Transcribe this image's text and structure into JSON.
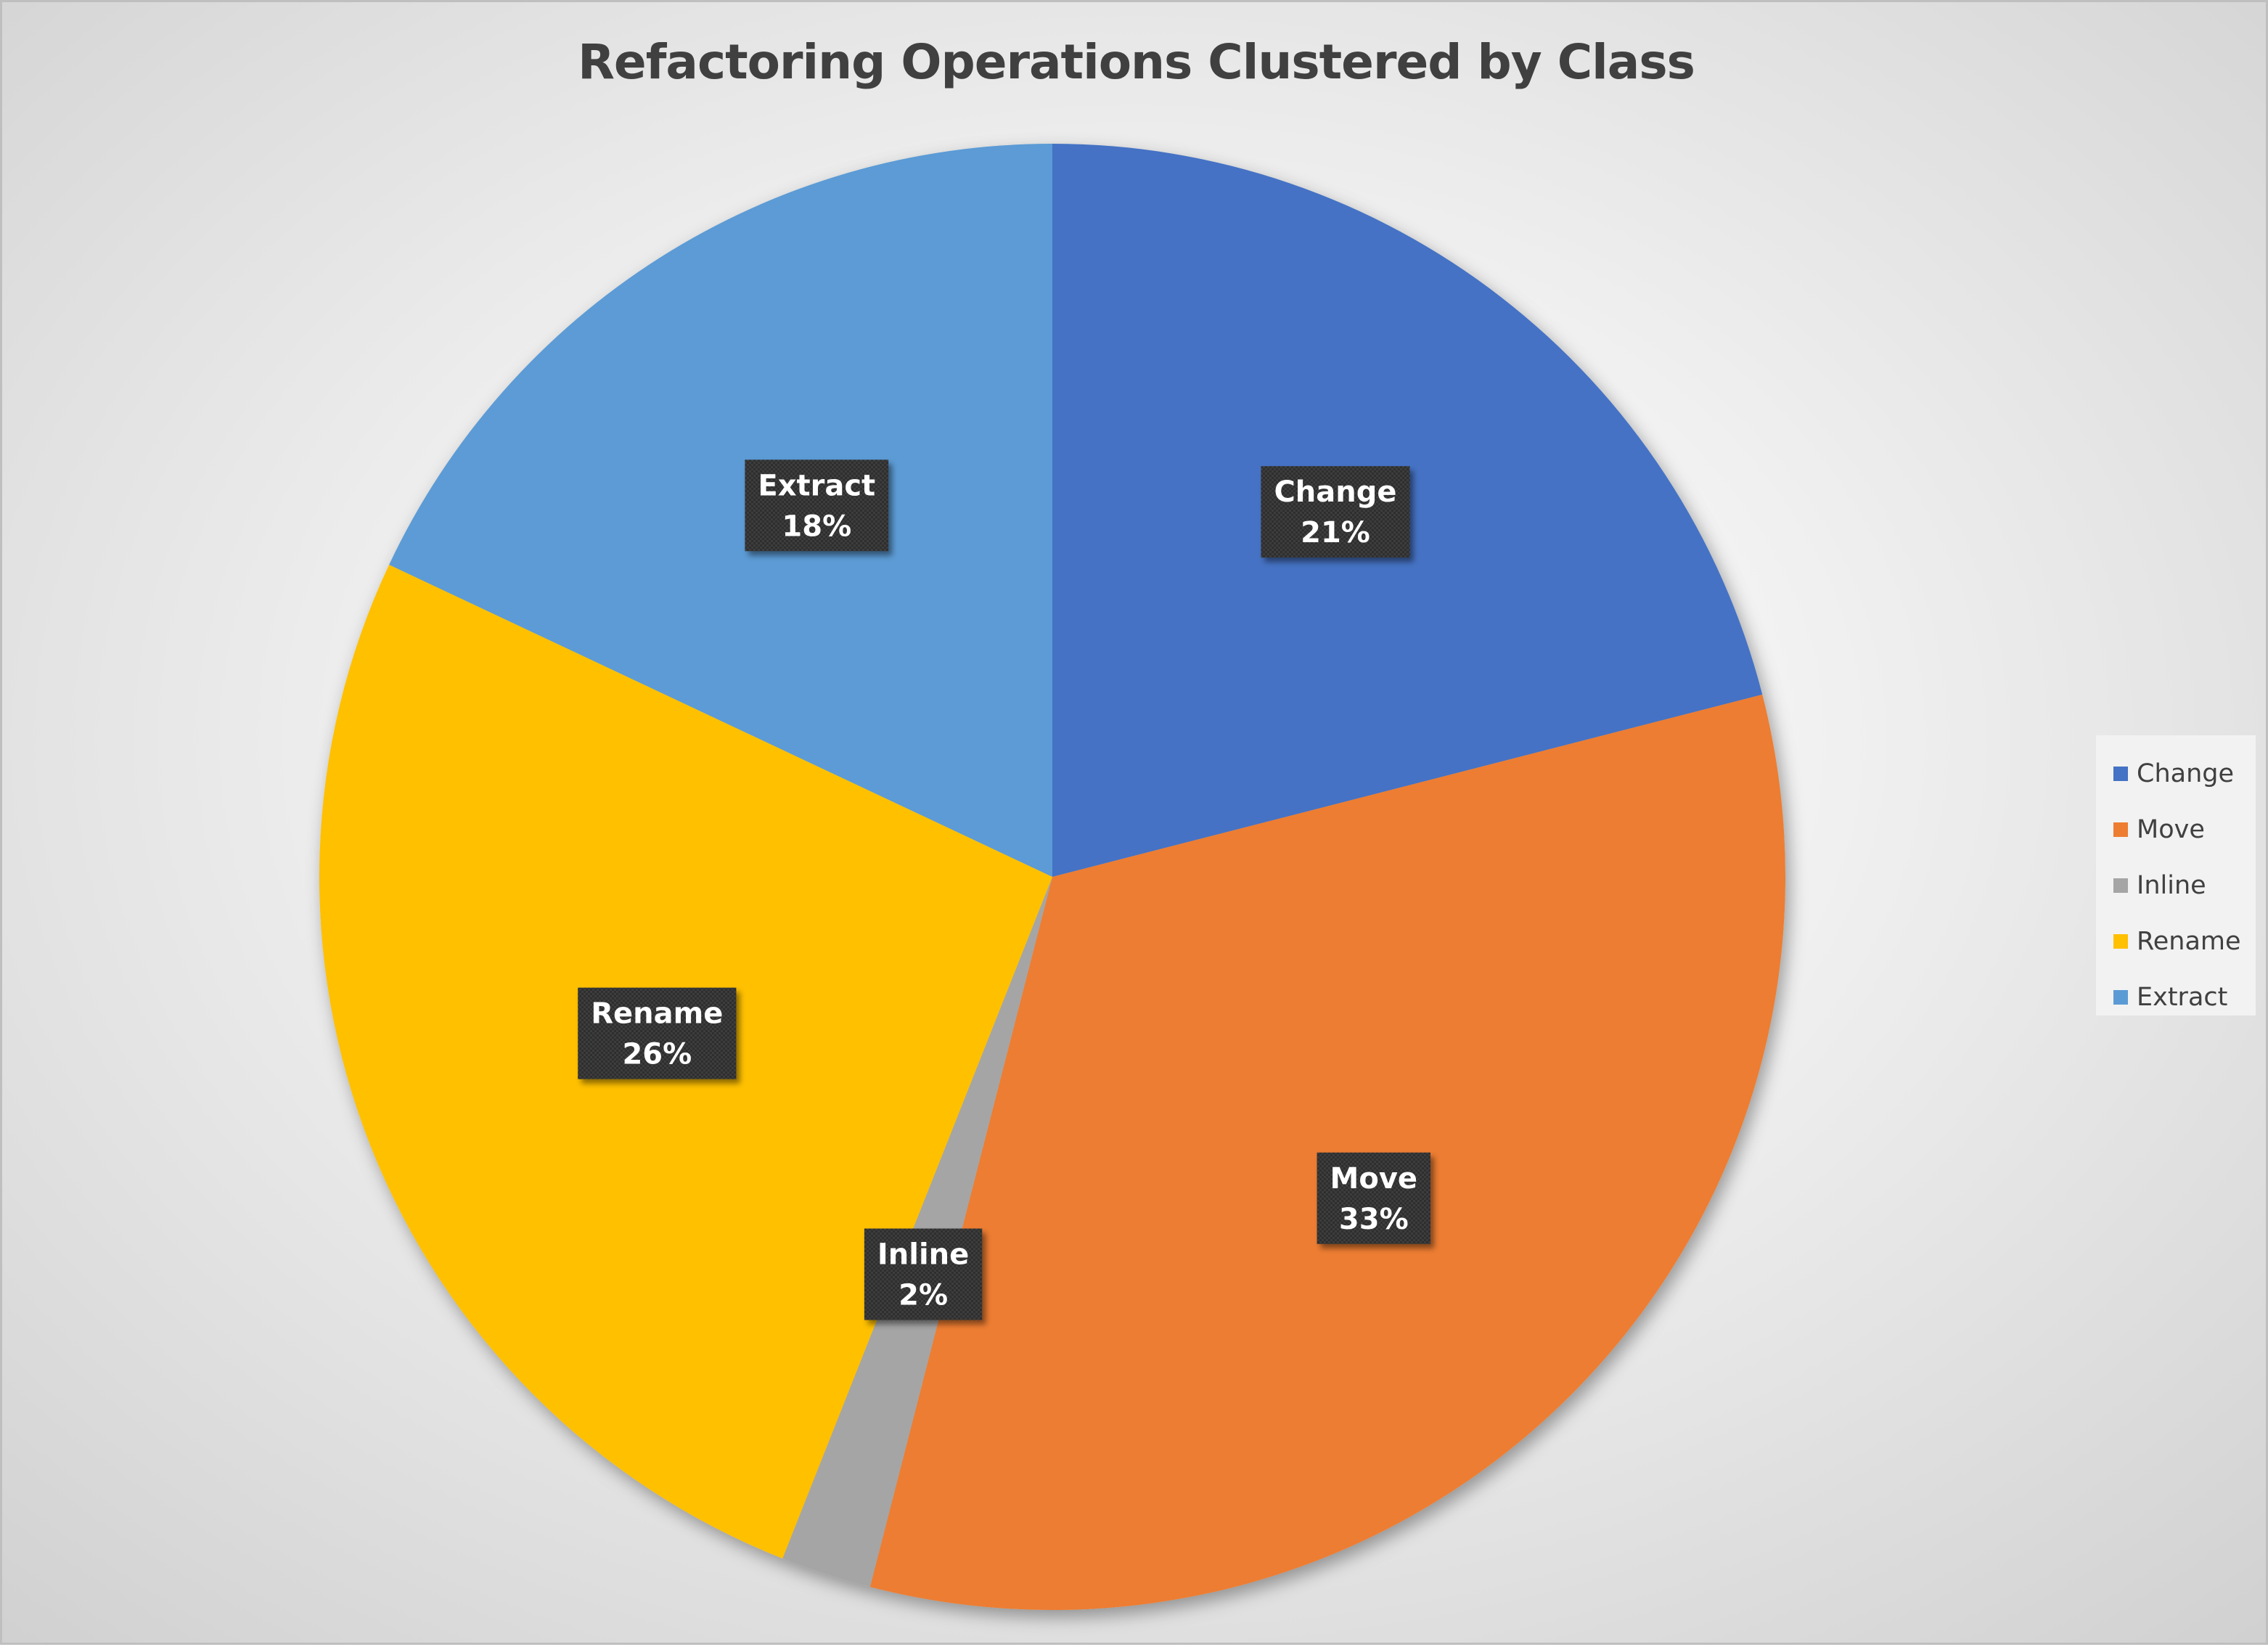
{
  "chart_data": {
    "type": "pie",
    "title": "Refactoring Operations Clustered by Class",
    "categories": [
      "Change",
      "Move",
      "Inline",
      "Rename",
      "Extract"
    ],
    "values": [
      21,
      33,
      2,
      26,
      18
    ],
    "data_labels": [
      "21%",
      "33%",
      "2%",
      "26%",
      "18%"
    ],
    "colors": [
      "#4472C4",
      "#ED7D31",
      "#A5A5A5",
      "#FFC000",
      "#5B9BD5"
    ],
    "legend": {
      "placement": "right",
      "entries": [
        "Change",
        "Move",
        "Inline",
        "Rename",
        "Extract"
      ]
    },
    "start_angle_deg": 0,
    "direction": "clockwise"
  }
}
